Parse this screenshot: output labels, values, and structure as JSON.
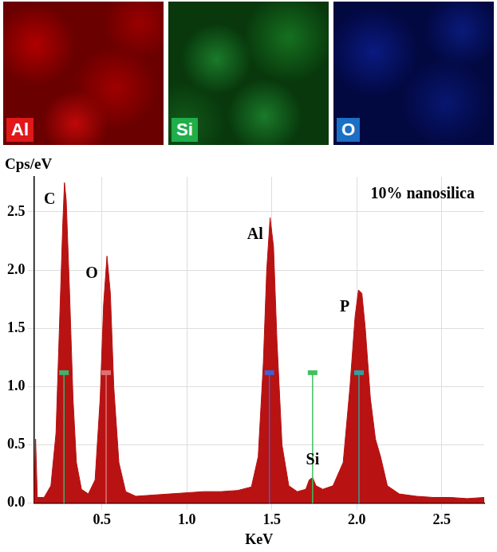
{
  "panels": [
    {
      "label": "Al",
      "color": "#e01818"
    },
    {
      "label": "Si",
      "color": "#1fae4a"
    },
    {
      "label": "O",
      "color": "#1b6fc4"
    }
  ],
  "chart_data": {
    "type": "area",
    "annotation": "10% nanosilica",
    "x_label": "KeV",
    "y_label": "Cps/eV",
    "color": "#b81212",
    "x": [
      0.1,
      0.11,
      0.12,
      0.16,
      0.2,
      0.23,
      0.25,
      0.27,
      0.28,
      0.29,
      0.31,
      0.33,
      0.35,
      0.38,
      0.42,
      0.46,
      0.49,
      0.51,
      0.53,
      0.55,
      0.57,
      0.6,
      0.64,
      0.7,
      0.8,
      0.9,
      1.0,
      1.1,
      1.2,
      1.3,
      1.38,
      1.42,
      1.45,
      1.47,
      1.49,
      1.51,
      1.53,
      1.56,
      1.6,
      1.65,
      1.7,
      1.72,
      1.74,
      1.76,
      1.8,
      1.86,
      1.92,
      1.96,
      1.99,
      2.01,
      2.03,
      2.05,
      2.08,
      2.11,
      2.14,
      2.18,
      2.25,
      2.35,
      2.45,
      2.55,
      2.65,
      2.75
    ],
    "values": [
      0.0,
      0.55,
      0.05,
      0.05,
      0.15,
      0.6,
      1.5,
      2.4,
      2.75,
      2.6,
      1.8,
      0.9,
      0.35,
      0.12,
      0.08,
      0.2,
      0.9,
      1.7,
      2.12,
      1.8,
      1.0,
      0.35,
      0.1,
      0.06,
      0.07,
      0.08,
      0.09,
      0.1,
      0.1,
      0.11,
      0.14,
      0.4,
      1.2,
      2.0,
      2.45,
      2.2,
      1.4,
      0.5,
      0.15,
      0.1,
      0.12,
      0.2,
      0.22,
      0.15,
      0.12,
      0.15,
      0.35,
      1.0,
      1.6,
      1.83,
      1.8,
      1.5,
      0.9,
      0.55,
      0.4,
      0.15,
      0.08,
      0.06,
      0.05,
      0.05,
      0.04,
      0.05
    ],
    "xlim": [
      0.1,
      2.75
    ],
    "ylim": [
      0,
      2.8
    ],
    "xticks": [
      0.5,
      {
        "value": 1,
        "label": "1.0"
      },
      1.5,
      {
        "value": 2,
        "label": "2.0"
      },
      2.5
    ],
    "yticks": [
      {
        "value": 0,
        "label": "0.0"
      },
      0.5,
      {
        "value": 1,
        "label": "1.0"
      },
      1.5,
      {
        "value": 2,
        "label": "2.0"
      },
      2.5
    ],
    "grid": true,
    "peaks": [
      {
        "label": "C",
        "energy": 0.277,
        "color": "#3cb371"
      },
      {
        "label": "O",
        "energy": 0.525,
        "color": "#e07070"
      },
      {
        "label": "Al",
        "energy": 1.486,
        "color": "#4060d0"
      },
      {
        "label": "Si",
        "energy": 1.74,
        "color": "#40c060"
      },
      {
        "label": "P",
        "energy": 2.013,
        "color": "#30a0a0"
      }
    ]
  }
}
